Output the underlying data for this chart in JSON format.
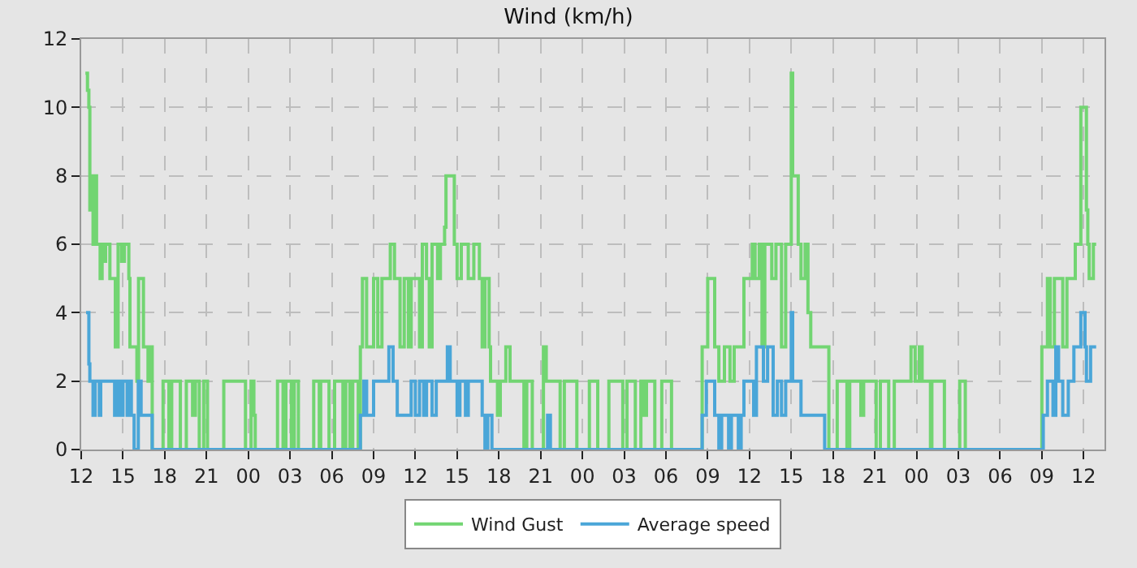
{
  "chart_data": {
    "type": "step",
    "title": "Wind (km/h)",
    "legend": "bottom",
    "grid": true,
    "line_style": "solid",
    "marker": "none",
    "xlim": [
      12,
      85.5
    ],
    "xticks": [
      {
        "value": 12,
        "label": "12"
      },
      {
        "value": 15,
        "label": "15"
      },
      {
        "value": 18,
        "label": "18"
      },
      {
        "value": 21,
        "label": "21"
      },
      {
        "value": 24,
        "label": "00"
      },
      {
        "value": 27,
        "label": "03"
      },
      {
        "value": 30,
        "label": "06"
      },
      {
        "value": 33,
        "label": "09"
      },
      {
        "value": 36,
        "label": "12"
      },
      {
        "value": 39,
        "label": "15"
      },
      {
        "value": 42,
        "label": "18"
      },
      {
        "value": 45,
        "label": "21"
      },
      {
        "value": 48,
        "label": "00"
      },
      {
        "value": 51,
        "label": "03"
      },
      {
        "value": 54,
        "label": "06"
      },
      {
        "value": 57,
        "label": "09"
      },
      {
        "value": 60,
        "label": "12"
      },
      {
        "value": 63,
        "label": "15"
      },
      {
        "value": 66,
        "label": "18"
      },
      {
        "value": 69,
        "label": "21"
      },
      {
        "value": 72,
        "label": "00"
      },
      {
        "value": 75,
        "label": "03"
      },
      {
        "value": 78,
        "label": "06"
      },
      {
        "value": 81,
        "label": "09"
      },
      {
        "value": 84,
        "label": "12"
      }
    ],
    "ylim": [
      0,
      12
    ],
    "yticks": [
      0,
      2,
      4,
      6,
      8,
      10,
      12
    ],
    "series": [
      {
        "name": "Wind Gust",
        "color": "#72d572",
        "x": [
          12.3,
          12.45,
          12.55,
          12.62,
          12.7,
          12.85,
          13.0,
          13.1,
          13.36,
          13.5,
          13.67,
          13.75,
          14.06,
          14.45,
          14.65,
          14.9,
          15.1,
          15.42,
          15.5,
          16.0,
          16.12,
          16.47,
          16.8,
          16.9,
          17.1,
          17.88,
          18.3,
          18.5,
          19.12,
          19.55,
          20.0,
          20.2,
          20.48,
          20.8,
          21.07,
          22.24,
          23.8,
          24.2,
          24.4,
          24.5,
          26.1,
          26.5,
          26.7,
          27.1,
          27.3,
          27.6,
          28.7,
          29.1,
          29.2,
          29.8,
          30.2,
          30.8,
          31.0,
          31.3,
          31.5,
          31.9,
          32.05,
          32.2,
          32.5,
          33.0,
          33.3,
          33.6,
          34.2,
          34.5,
          34.9,
          35.2,
          35.5,
          35.7,
          36.3,
          36.5,
          36.8,
          37.0,
          37.2,
          37.6,
          37.8,
          38.1,
          38.2,
          38.8,
          39.0,
          39.3,
          39.8,
          40.2,
          40.6,
          40.8,
          41.0,
          41.3,
          41.4,
          41.9,
          42.1,
          42.5,
          42.8,
          43.8,
          44.0,
          44.4,
          45.2,
          45.4,
          46.4,
          46.7,
          47.6,
          48.5,
          49.1,
          49.9,
          50.9,
          51.2,
          51.8,
          52.2,
          52.4,
          52.6,
          53.2,
          53.7,
          54.4,
          56.6,
          57.0,
          57.5,
          57.8,
          58.2,
          58.6,
          58.9,
          59.6,
          60.2,
          60.4,
          60.7,
          60.9,
          61.1,
          61.6,
          61.9,
          62.3,
          62.6,
          63.0,
          63.1,
          63.5,
          63.7,
          64.0,
          64.2,
          64.4,
          65.7,
          66.3,
          67.0,
          67.2,
          68.0,
          68.2,
          69.1,
          69.4,
          70.0,
          70.4,
          71.6,
          71.9,
          72.2,
          72.4,
          73.0,
          73.1,
          74.0,
          75.1,
          75.5,
          81.0,
          81.4,
          81.6,
          81.9,
          82.5,
          82.8,
          83.4,
          83.8,
          84.2,
          84.3,
          84.4,
          84.7,
          84.9
        ],
        "values": [
          11,
          10.5,
          10,
          7,
          8,
          6,
          8,
          6,
          5,
          6,
          5.5,
          6,
          5,
          3,
          6,
          5.5,
          6,
          5,
          3,
          2,
          5,
          3,
          2,
          3,
          0,
          2,
          0,
          2,
          0,
          2,
          1,
          2,
          0,
          2,
          0,
          2,
          0,
          2,
          1,
          0,
          2,
          0,
          2,
          0,
          2,
          0,
          2,
          0,
          2,
          0,
          2,
          0,
          2,
          0,
          2,
          0,
          3,
          5,
          3,
          5,
          3,
          5,
          6,
          5,
          3,
          5,
          3,
          5,
          3,
          6,
          5,
          3,
          6,
          5,
          6,
          6.5,
          8,
          6,
          5,
          6,
          5,
          6,
          5,
          3,
          5,
          3,
          2,
          1,
          2,
          3,
          2,
          0,
          2,
          0,
          3,
          2,
          0,
          2,
          0,
          2,
          0,
          2,
          0,
          2,
          0,
          2,
          1,
          2,
          0,
          2,
          0,
          3,
          5,
          3,
          2,
          3,
          2,
          3,
          5,
          6,
          5,
          6,
          3,
          6,
          5,
          6,
          3,
          6,
          11,
          8,
          6,
          5,
          6,
          4,
          3,
          0,
          2,
          0,
          2,
          1,
          2,
          0,
          2,
          0,
          2,
          3,
          2,
          3,
          2,
          0,
          2,
          0,
          2,
          0,
          3,
          5,
          3,
          5,
          3,
          5,
          6,
          10,
          7,
          6,
          5,
          6,
          6
        ]
      },
      {
        "name": "Average speed",
        "color": "#4aa6d8",
        "x": [
          12.35,
          12.55,
          12.62,
          12.85,
          13.0,
          13.3,
          13.4,
          14.4,
          14.6,
          14.8,
          15.0,
          15.3,
          15.5,
          15.6,
          15.8,
          16.1,
          16.3,
          17.1,
          32.05,
          32.3,
          32.5,
          33.0,
          34.1,
          34.4,
          34.7,
          35.7,
          36.0,
          36.3,
          36.6,
          36.8,
          37.2,
          37.5,
          38.3,
          38.5,
          39.0,
          39.2,
          39.6,
          39.8,
          40.8,
          41.0,
          41.2,
          41.5,
          45.5,
          45.7,
          56.6,
          56.9,
          57.5,
          57.8,
          58.0,
          58.5,
          58.7,
          59.2,
          59.4,
          59.6,
          60.3,
          60.5,
          61.0,
          61.3,
          61.7,
          62.0,
          62.3,
          62.6,
          63.0,
          63.1,
          63.7,
          65.4,
          81.1,
          81.4,
          81.8,
          82.0,
          82.2,
          82.5,
          82.9,
          83.3,
          83.8,
          84.1,
          84.2,
          84.5,
          84.9
        ],
        "values": [
          4,
          2.5,
          2,
          1,
          2,
          1,
          2,
          1,
          2,
          1,
          2,
          1,
          2,
          1,
          0,
          2,
          1,
          0,
          1,
          2,
          1,
          2,
          3,
          2,
          1,
          2,
          1,
          2,
          1,
          2,
          1,
          2,
          3,
          2,
          1,
          2,
          1,
          2,
          1,
          0,
          1,
          0,
          1,
          0,
          1,
          2,
          1,
          0,
          1,
          0,
          1,
          0,
          1,
          2,
          1,
          3,
          2,
          3,
          1,
          2,
          1,
          2,
          4,
          2,
          1,
          0,
          1,
          2,
          1,
          3,
          2,
          1,
          2,
          3,
          4,
          3,
          2,
          3,
          3
        ]
      }
    ]
  }
}
